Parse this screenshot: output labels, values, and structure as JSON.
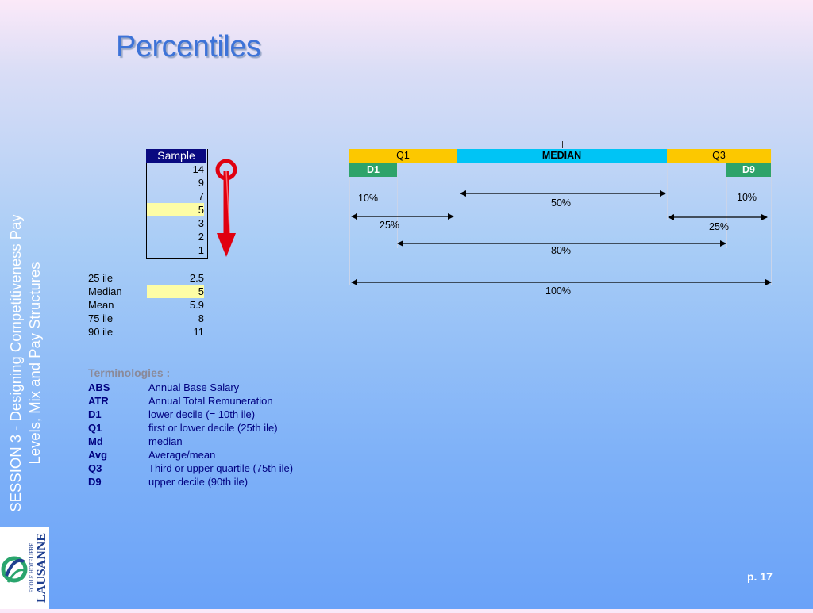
{
  "title": "Percentiles",
  "side_title_line1": "SESSION 3 - Designing Competitiveness Pay",
  "side_title_line2": "Levels, Mix and Pay Structures",
  "logo": {
    "line1": "ECOLE HOTELIERE",
    "line2": "LAUSANNE"
  },
  "page_number": "p. 17",
  "sample": {
    "header": "Sample",
    "values": [
      "14",
      "9",
      "7",
      "5",
      "3",
      "2",
      "1"
    ]
  },
  "stats": [
    {
      "label": "25 ile",
      "value": "2.5"
    },
    {
      "label": "Median",
      "value": "5"
    },
    {
      "label": "Mean",
      "value": "5.9"
    },
    {
      "label": "75 ile",
      "value": "8"
    },
    {
      "label": "90 ile",
      "value": "11"
    }
  ],
  "terminologies": {
    "title": "Terminologies :",
    "items": [
      {
        "abbr": "ABS",
        "def": "Annual Base Salary"
      },
      {
        "abbr": "ATR",
        "def": "Annual Total Remuneration"
      },
      {
        "abbr": "D1",
        "def": "lower decile (= 10th ile)"
      },
      {
        "abbr": "Q1",
        "def": "first or lower decile (25th ile)"
      },
      {
        "abbr": "Md",
        "def": "median"
      },
      {
        "abbr": "Avg",
        "def": "Average/mean"
      },
      {
        "abbr": "Q3",
        "def": "Third or upper quartile (75th ile)"
      },
      {
        "abbr": "D9",
        "def": "upper decile (90th ile)"
      }
    ]
  },
  "diagram": {
    "q1": "Q1",
    "median": "MEDIAN",
    "q3": "Q3",
    "d1": "D1",
    "d9": "D9",
    "pct_10_left": "10%",
    "pct_10_right": "10%",
    "pct_50": "50%",
    "pct_25_left": "25%",
    "pct_25_right": "25%",
    "pct_80": "80%",
    "pct_100": "100%"
  },
  "colors": {
    "quartile": "#fcc800",
    "median": "#00c4f5",
    "decile": "#2ea36a",
    "sample_header": "#0a0a80",
    "highlight": "#fdfda6",
    "arrow": "#e00010",
    "title": "#3d73d8",
    "terms": "#000080"
  }
}
